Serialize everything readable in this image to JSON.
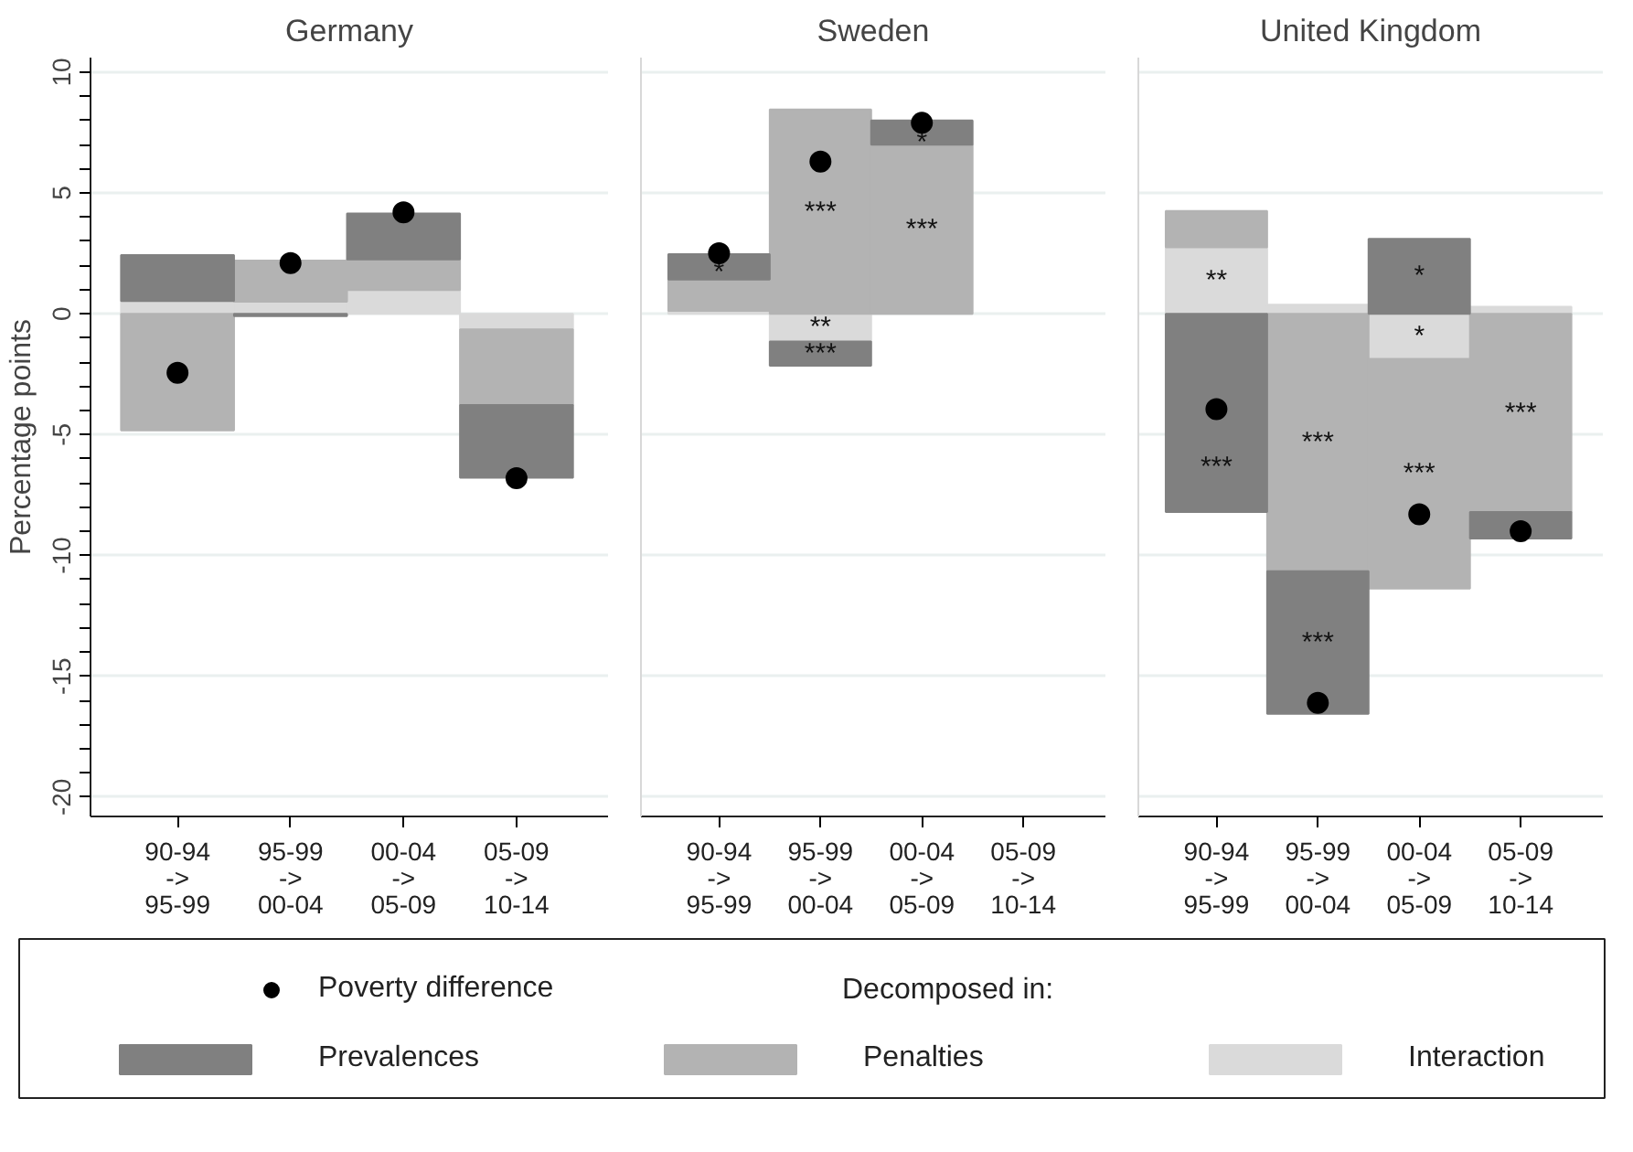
{
  "chart_data": [
    {
      "type": "bar",
      "title": "Germany",
      "ylabel": "Percentage points",
      "stacked": true,
      "legend": "bottom",
      "legend_title": "Decomposed in:",
      "grid": "y",
      "categories": [
        "90-94\n->\n95-99",
        "95-99\n->\n00-04",
        "00-04\n->\n05-09",
        "05-09\n->\n10-14"
      ],
      "ylim": [
        -20.8,
        10.6
      ],
      "yticks": [
        -20,
        {
          "value": -19,
          "label": null
        },
        {
          "value": -18,
          "label": null
        },
        {
          "value": -17,
          "label": null
        },
        {
          "value": -16,
          "label": null
        },
        -15,
        {
          "value": -14,
          "label": null
        },
        {
          "value": -13,
          "label": null
        },
        {
          "value": -12,
          "label": null
        },
        {
          "value": -11,
          "label": null
        },
        -10,
        {
          "value": -9,
          "label": null
        },
        {
          "value": -8,
          "label": null
        },
        {
          "value": -7,
          "label": null
        },
        {
          "value": -6,
          "label": null
        },
        -5,
        {
          "value": -4,
          "label": null
        },
        {
          "value": -3,
          "label": null
        },
        {
          "value": -2,
          "label": null
        },
        {
          "value": -1,
          "label": null
        },
        0,
        {
          "value": 1,
          "label": null
        },
        {
          "value": 2,
          "label": null
        },
        {
          "value": 3,
          "label": null
        },
        {
          "value": 4,
          "label": null
        },
        5,
        {
          "value": 6,
          "label": null
        },
        {
          "value": 7,
          "label": null
        },
        {
          "value": 8,
          "label": null
        },
        {
          "value": 9,
          "label": null
        },
        10
      ],
      "series": [
        {
          "name": "Interaction",
          "color": "#dadada",
          "values": [
            0.53,
            0.5,
            0.98,
            -0.65
          ]
        },
        {
          "name": "Penalties",
          "color": "#b3b3b3",
          "values": [
            -4.83,
            1.7,
            1.27,
            -3.13
          ]
        },
        {
          "name": "Prevalences",
          "color": "#808080",
          "values": [
            1.9,
            -0.1,
            1.9,
            -3.0
          ]
        },
        {
          "name": "Poverty difference",
          "type": "scatter",
          "marker": "circle",
          "color": "#000000",
          "x": [
            "90-94\n->\n95-99",
            "95-99\n->\n00-04",
            "00-04\n->\n05-09",
            "05-09\n->\n10-14"
          ],
          "values": [
            -2.44,
            2.1,
            4.2,
            -6.8
          ]
        }
      ]
    },
    {
      "type": "bar",
      "title": "Sweden",
      "stacked": true,
      "grid": "y",
      "tick_labels": "x",
      "categories": [
        "90-94\n->\n95-99",
        "95-99\n->\n00-04",
        "00-04\n->\n05-09",
        "05-09\n->\n10-14"
      ],
      "ylim": [
        -20.8,
        10.6
      ],
      "yticks": [
        -20,
        -15,
        -10,
        -5,
        0,
        5,
        10
      ],
      "series": [
        {
          "color": "#dadada",
          "values": [
            0.12,
            -1.15,
            0,
            null
          ],
          "value_labels": [
            null,
            "**",
            null,
            null
          ]
        },
        {
          "color": "#b3b3b3",
          "values": [
            1.3,
            8.45,
            7.0,
            null
          ],
          "value_labels": [
            null,
            "***",
            "***",
            null
          ]
        },
        {
          "color": "#808080",
          "values": [
            1.05,
            -1.0,
            1.0,
            null
          ],
          "value_labels": [
            "*",
            "***",
            "*",
            null
          ]
        },
        {
          "type": "scatter",
          "marker": "circle",
          "color": "#000000",
          "x": [
            "90-94\n->\n95-99",
            "95-99\n->\n00-04",
            "00-04\n->\n05-09",
            "05-09\n->\n10-14"
          ],
          "values": [
            2.5,
            6.3,
            7.9,
            null
          ]
        }
      ]
    },
    {
      "type": "bar",
      "title": "United Kingdom",
      "stacked": true,
      "grid": "y",
      "tick_labels": "x",
      "categories": [
        "90-94\n->\n95-99",
        "95-99\n->\n00-04",
        "00-04\n->\n05-09",
        "05-09\n->\n10-14"
      ],
      "ylim": [
        -20.8,
        10.6
      ],
      "yticks": [
        -20,
        -15,
        -10,
        -5,
        0,
        5,
        10
      ],
      "series": [
        {
          "color": "#dadada",
          "values": [
            2.75,
            0.38,
            -1.87,
            0.29
          ],
          "value_labels": [
            "**",
            null,
            "*",
            null
          ]
        },
        {
          "color": "#b3b3b3",
          "values": [
            1.5,
            -10.65,
            -9.5,
            -8.2
          ],
          "value_labels": [
            null,
            "***",
            "***",
            "***"
          ]
        },
        {
          "color": "#808080",
          "values": [
            -8.2,
            -5.9,
            3.1,
            -1.1
          ],
          "value_labels": [
            "***",
            "***",
            "*",
            null
          ]
        },
        {
          "type": "scatter",
          "marker": "circle",
          "color": "#000000",
          "x": [
            "90-94\n->\n95-99",
            "95-99\n->\n00-04",
            "00-04\n->\n05-09",
            "05-09\n->\n10-14"
          ],
          "values": [
            -3.95,
            -16.1,
            -8.3,
            -9.0
          ]
        }
      ]
    }
  ]
}
